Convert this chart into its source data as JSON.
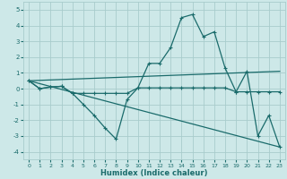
{
  "xlabel": "Humidex (Indice chaleur)",
  "xlim": [
    -0.5,
    23.5
  ],
  "ylim": [
    -4.5,
    5.5
  ],
  "xticks": [
    0,
    1,
    2,
    3,
    4,
    5,
    6,
    7,
    8,
    9,
    10,
    11,
    12,
    13,
    14,
    15,
    16,
    17,
    18,
    19,
    20,
    21,
    22,
    23
  ],
  "yticks": [
    -4,
    -3,
    -2,
    -1,
    0,
    1,
    2,
    3,
    4,
    5
  ],
  "background_color": "#cde8e8",
  "grid_color": "#a8cccc",
  "line_color": "#1a6b6b",
  "line2_x": [
    0,
    1,
    2,
    3,
    4,
    5,
    6,
    7,
    8,
    9,
    10,
    11,
    12,
    13,
    14,
    15,
    16,
    17,
    18,
    19,
    20,
    21,
    22,
    23
  ],
  "line2_y": [
    0.5,
    0.0,
    0.1,
    0.15,
    -0.3,
    -1.0,
    -1.7,
    -2.5,
    -3.2,
    -0.7,
    0.05,
    1.6,
    1.6,
    2.6,
    4.5,
    4.7,
    3.3,
    3.6,
    1.3,
    -0.2,
    1.1,
    -3.0,
    -1.7,
    -3.7
  ],
  "line1_x": [
    0,
    1,
    2,
    3,
    4,
    5,
    6,
    7,
    8,
    9,
    10,
    11,
    12,
    13,
    14,
    15,
    16,
    17,
    18,
    19,
    20,
    21,
    22,
    23
  ],
  "line1_y": [
    0.5,
    0.0,
    0.1,
    0.15,
    -0.3,
    -0.3,
    -0.3,
    -0.3,
    -0.3,
    -0.3,
    0.05,
    0.05,
    0.05,
    0.05,
    0.05,
    0.05,
    0.05,
    0.05,
    0.05,
    -0.2,
    -0.2,
    -0.2,
    -0.2,
    -0.2
  ],
  "line3_x": [
    0,
    23
  ],
  "line3_y": [
    0.5,
    1.1
  ],
  "line4_x": [
    0,
    23
  ],
  "line4_y": [
    0.5,
    -3.7
  ]
}
